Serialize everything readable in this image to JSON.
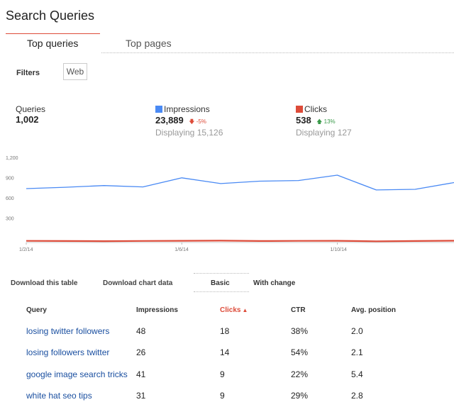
{
  "page": {
    "title": "Search Queries"
  },
  "tabs": [
    {
      "label": "Top queries",
      "active": true
    },
    {
      "label": "Top pages",
      "active": false
    }
  ],
  "filters": {
    "label": "Filters",
    "chip": "Web"
  },
  "stats": {
    "queries": {
      "label": "Queries",
      "value": "1,002"
    },
    "impressions": {
      "label": "Impressions",
      "value": "23,889",
      "change": "-5%",
      "change_direction": "down",
      "displaying": "Displaying 15,126",
      "color": "#4a8af4"
    },
    "clicks": {
      "label": "Clicks",
      "value": "538",
      "change": "13%",
      "change_direction": "up",
      "displaying": "Displaying 127",
      "color": "#dd4b39"
    }
  },
  "chart_data": {
    "type": "line",
    "x": [
      "1/2/14",
      "1/3/14",
      "1/4/14",
      "1/5/14",
      "1/6/14",
      "1/7/14",
      "1/8/14",
      "1/9/14",
      "1/10/14",
      "1/11/14",
      "1/12/14",
      "1/13/14"
    ],
    "x_tick_labels": [
      "1/2/14",
      "1/6/14",
      "1/10/14"
    ],
    "y_tick_labels": [
      "1,200",
      "900",
      "600",
      "300"
    ],
    "ylim": [
      0,
      1200
    ],
    "grid": false,
    "series": [
      {
        "name": "Impressions",
        "color": "#4a8af4",
        "values": [
          800,
          820,
          845,
          825,
          960,
          875,
          910,
          920,
          1000,
          780,
          790,
          890
        ]
      },
      {
        "name": "Clicks",
        "color": "#dd4b39",
        "values": [
          24,
          22,
          20,
          23,
          25,
          27,
          22,
          24,
          25,
          18,
          22,
          26
        ]
      }
    ]
  },
  "toolbar": {
    "download_table": "Download this table",
    "download_chart": "Download chart data",
    "basic": "Basic",
    "with_change": "With change"
  },
  "table": {
    "headers": [
      "Query",
      "Impressions",
      "Clicks",
      "CTR",
      "Avg. position"
    ],
    "sorted_column": "Clicks",
    "sort_direction": "desc",
    "rows": [
      {
        "query": "losing twitter followers",
        "impressions": "48",
        "clicks": "18",
        "ctr": "38%",
        "position": "2.0"
      },
      {
        "query": "losing followers twitter",
        "impressions": "26",
        "clicks": "14",
        "ctr": "54%",
        "position": "2.1"
      },
      {
        "query": "google image search tricks",
        "impressions": "41",
        "clicks": "9",
        "ctr": "22%",
        "position": "5.4"
      },
      {
        "query": "white hat seo tips",
        "impressions": "31",
        "clicks": "9",
        "ctr": "29%",
        "position": "2.8"
      }
    ]
  }
}
